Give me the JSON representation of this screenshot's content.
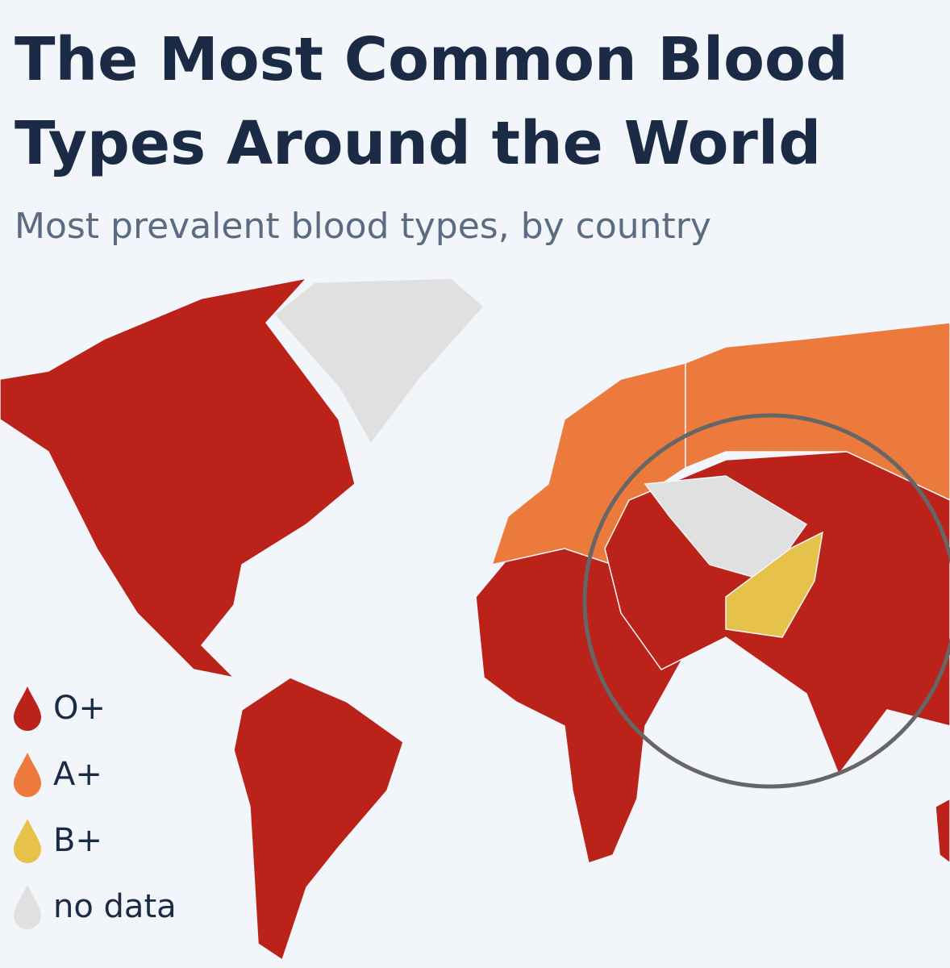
{
  "title": "The Most Common Blood Types Around the World",
  "subtitle": "Most prevalent blood types, by country",
  "legend": [
    {
      "label": "O+",
      "color": "#bb2219"
    },
    {
      "label": "A+",
      "color": "#ec7a3c"
    },
    {
      "label": "B+",
      "color": "#e6c24a"
    },
    {
      "label": "no data",
      "color": "#e0e0e0"
    }
  ]
}
